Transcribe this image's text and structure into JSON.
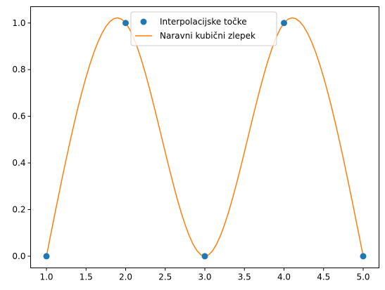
{
  "chart_data": {
    "type": "line",
    "title": "",
    "xlabel": "",
    "ylabel": "",
    "xlim": [
      0.8,
      5.2
    ],
    "ylim": [
      -0.05,
      1.07
    ],
    "xticks": [
      1.0,
      1.5,
      2.0,
      2.5,
      3.0,
      3.5,
      4.0,
      4.5,
      5.0
    ],
    "xtick_labels": [
      "1.0",
      "1.5",
      "2.0",
      "2.5",
      "3.0",
      "3.5",
      "4.0",
      "4.5",
      "5.0"
    ],
    "yticks": [
      0.0,
      0.2,
      0.4,
      0.6,
      0.8,
      1.0
    ],
    "ytick_labels": [
      "0.0",
      "0.2",
      "0.4",
      "0.6",
      "0.8",
      "1.0"
    ],
    "grid": false,
    "legend": {
      "placement": "upper-center",
      "entries": [
        "Interpolacijske točke",
        "Naravni kubični zlepek"
      ]
    },
    "series": [
      {
        "name": "Interpolacijske točke",
        "kind": "scatter",
        "color": "#1f77b4",
        "x": [
          1,
          2,
          3,
          4,
          5
        ],
        "y": [
          0,
          1,
          0,
          1,
          0
        ]
      },
      {
        "name": "Naravni kubični zlepek",
        "kind": "line",
        "color": "#ff7f0e",
        "spline_of": "Interpolacijske točke",
        "boundary": "natural"
      }
    ]
  }
}
